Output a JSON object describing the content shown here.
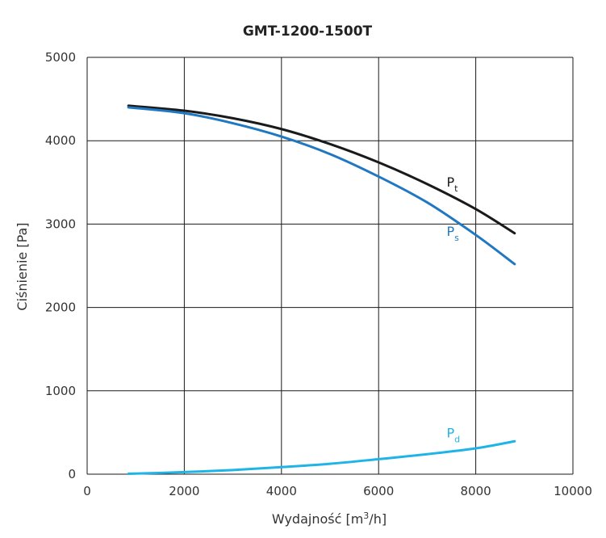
{
  "chart_data": {
    "type": "line",
    "title": "GMT-1200-1500T",
    "xlabel": {
      "main": "Wydajność [m",
      "sup": "3",
      "end": "/h]"
    },
    "ylabel": "Ciśnienie [Pa]",
    "xlim": [
      0,
      10000
    ],
    "ylim": [
      0,
      5000
    ],
    "x_ticks": [
      0,
      2000,
      4000,
      6000,
      8000,
      10000
    ],
    "y_ticks": [
      0,
      1000,
      2000,
      3000,
      4000,
      5000
    ],
    "grid": true,
    "series": [
      {
        "name": "Pt",
        "label_main": "P",
        "label_sub": "t",
        "color": "#1a1a1a",
        "points": [
          [
            850,
            4420
          ],
          [
            2000,
            4360
          ],
          [
            3000,
            4270
          ],
          [
            4000,
            4140
          ],
          [
            5000,
            3960
          ],
          [
            6000,
            3740
          ],
          [
            7000,
            3480
          ],
          [
            8000,
            3180
          ],
          [
            8800,
            2890
          ]
        ]
      },
      {
        "name": "Ps",
        "label_main": "P",
        "label_sub": "s",
        "color": "#1f78c1",
        "points": [
          [
            850,
            4400
          ],
          [
            2000,
            4330
          ],
          [
            3000,
            4210
          ],
          [
            4000,
            4050
          ],
          [
            5000,
            3840
          ],
          [
            6000,
            3570
          ],
          [
            7000,
            3260
          ],
          [
            8000,
            2870
          ],
          [
            8800,
            2520
          ]
        ]
      },
      {
        "name": "Pd",
        "label_main": "P",
        "label_sub": "d",
        "color": "#1fb4e8",
        "points": [
          [
            850,
            5
          ],
          [
            2000,
            25
          ],
          [
            3000,
            50
          ],
          [
            4000,
            85
          ],
          [
            5000,
            125
          ],
          [
            6000,
            180
          ],
          [
            7000,
            240
          ],
          [
            8000,
            310
          ],
          [
            8800,
            395
          ]
        ]
      }
    ]
  }
}
